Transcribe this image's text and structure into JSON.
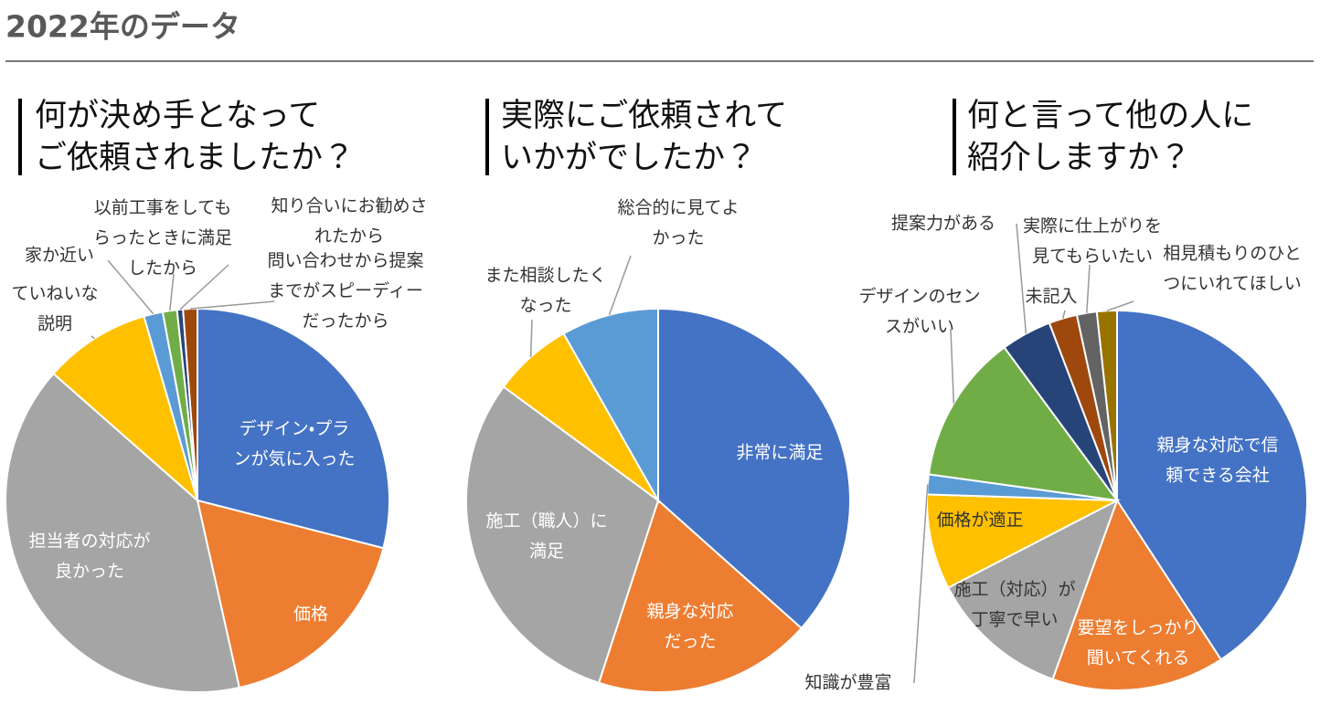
{
  "header": {
    "title": "2022年のデータ"
  },
  "chart_data": [
    {
      "type": "pie",
      "title": [
        "何が決め手となって",
        "ご依頼されましたか？"
      ],
      "categories": [
        [
          "デザイン・プラ",
          "ンが気に入った"
        ],
        [
          "価格"
        ],
        [
          "担当者の対応が",
          "良かった"
        ],
        [
          "ていねいな",
          "説明"
        ],
        [
          "家か近い"
        ],
        [
          "以前工事をしても",
          "らったときに満足",
          "したから"
        ],
        [
          "知り合いにお勧めさ",
          "れたから"
        ],
        [
          "問い合わせから提案",
          "までがスピーディー",
          "だったから"
        ]
      ],
      "values": [
        29,
        17.5,
        40,
        9,
        1.6,
        1.2,
        0.5,
        1.2
      ],
      "colors": [
        "#4472c4",
        "#ed7d31",
        "#a5a5a5",
        "#ffc000",
        "#5b9bd5",
        "#70ad47",
        "#264478",
        "#9e480e"
      ]
    },
    {
      "type": "pie",
      "title": [
        "実際にご依頼されて",
        "いかがでしたか？"
      ],
      "categories": [
        [
          "非常に満足"
        ],
        [
          "親身な対応",
          "だった"
        ],
        [
          "施工（職人）に",
          "満足"
        ],
        [
          "また相談したく",
          "なった"
        ],
        [
          "総合的に見てよ",
          "かった"
        ]
      ],
      "values": [
        36.6,
        18.4,
        30.1,
        6.7,
        8.2
      ],
      "colors": [
        "#4472c4",
        "#ed7d31",
        "#a5a5a5",
        "#ffc000",
        "#5b9bd5"
      ]
    },
    {
      "type": "pie",
      "title": [
        "何と言って他の人に",
        "紹介しますか？"
      ],
      "categories": [
        [
          "親身な対応で信",
          "頼できる会社"
        ],
        [
          "要望をしっかり",
          "聞いてくれる"
        ],
        [
          "施工（対応）が",
          "丁寧で早い"
        ],
        [
          "価格が適正"
        ],
        [
          "知識が豊富"
        ],
        [
          "デザインのセン",
          "スがいい"
        ],
        [
          "提案力がある"
        ],
        [
          "未記入"
        ],
        [
          "実際に仕上がりを",
          "見てもらいたい"
        ],
        [
          "相見積もりのひと",
          "つにいれてほしい"
        ]
      ],
      "values": [
        40.8,
        14.7,
        11.9,
        8.1,
        1.7,
        12.7,
        4.3,
        2.4,
        1.7,
        1.7
      ],
      "colors": [
        "#4472c4",
        "#ed7d31",
        "#a5a5a5",
        "#ffc000",
        "#5b9bd5",
        "#70ad47",
        "#264478",
        "#9e480e",
        "#636363",
        "#997300"
      ]
    }
  ]
}
